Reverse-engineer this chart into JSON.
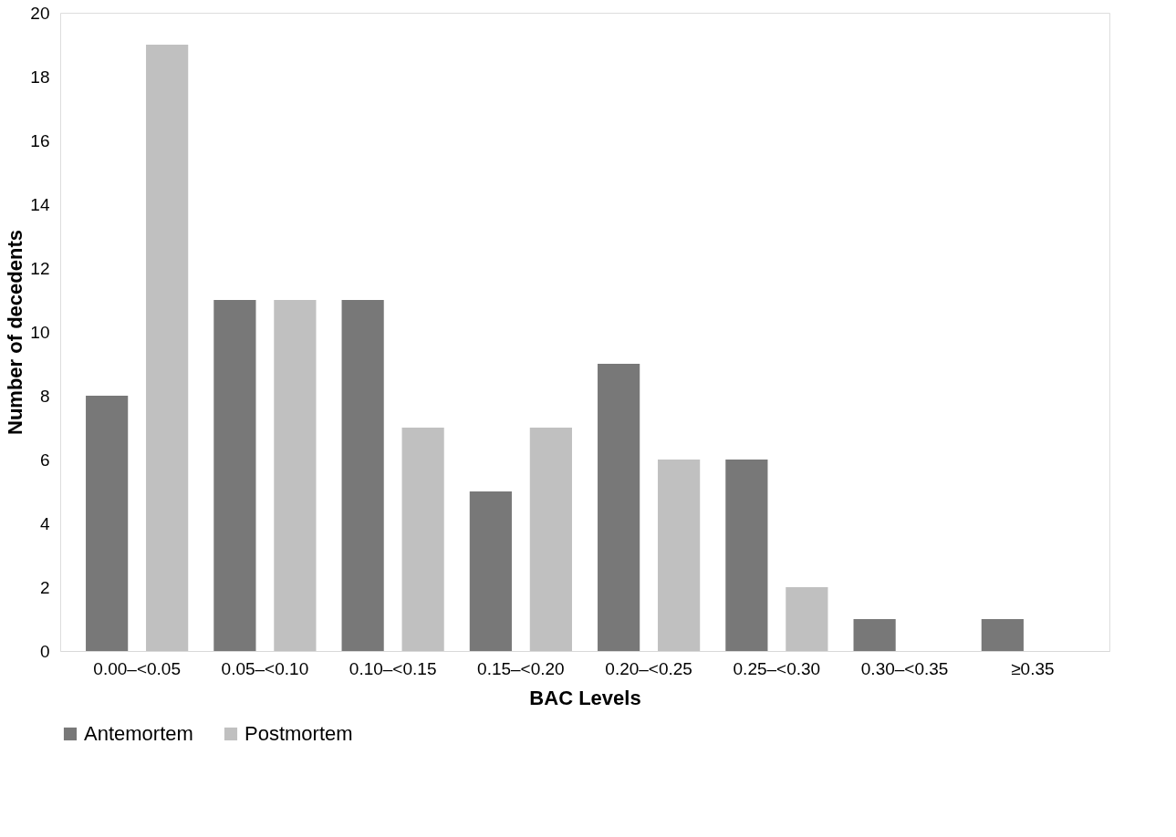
{
  "chart_data": {
    "type": "bar",
    "xlabel": "BAC Levels",
    "ylabel": "Number of decedents",
    "categories": [
      "0.00–<0.05",
      "0.05–<0.10",
      "0.10–<0.15",
      "0.15–<0.20",
      "0.20–<0.25",
      "0.25–<0.30",
      "0.30–<0.35",
      "≥0.35"
    ],
    "series": [
      {
        "name": "Antemortem",
        "color": "#787878",
        "values": [
          8,
          11,
          11,
          5,
          9,
          6,
          1,
          1
        ]
      },
      {
        "name": "Postmortem",
        "color": "#c0c0c0",
        "values": [
          19,
          11,
          7,
          7,
          6,
          2,
          0,
          0
        ]
      }
    ],
    "ylim": [
      0,
      20
    ],
    "yticks": [
      0,
      2,
      4,
      6,
      8,
      10,
      12,
      14,
      16,
      18,
      20
    ],
    "grid": false,
    "legend": "bottom"
  }
}
